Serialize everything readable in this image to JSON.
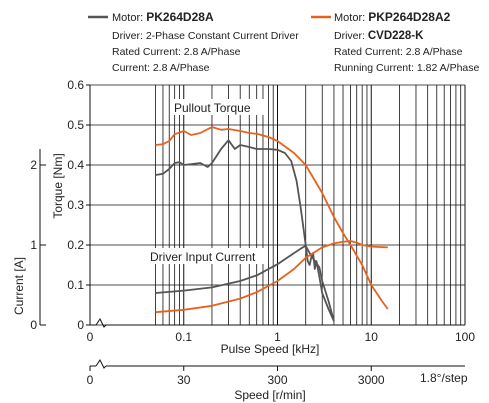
{
  "colors": {
    "dark_series": "#555555",
    "orange_series": "#e8621e",
    "grid": "#111111",
    "text": "#222222"
  },
  "legend": {
    "left": {
      "motor_prefix": "Motor: ",
      "motor_name": "PK264D28A",
      "lines": [
        "Driver: 2-Phase Constant Current Driver",
        "Rated Current: 2.8 A/Phase",
        "Current: 2.8 A/Phase"
      ]
    },
    "right": {
      "motor_prefix": "Motor: ",
      "motor_name": "PKP264D28A2",
      "driver_prefix": "Driver: ",
      "driver_name": "CVD228-K",
      "lines": [
        "Rated Current: 2.8 A/Phase",
        "Running Current: 1.82 A/Phase"
      ]
    }
  },
  "annotations": {
    "pullout": "Pullout Torque",
    "driver_current": "Driver Input Current"
  },
  "chart_data": {
    "type": "line",
    "x_scale": "log",
    "xlim": [
      0.01,
      100
    ],
    "xlabel": "Pulse Speed [kHz]",
    "x_ticks": [
      "0",
      "0.1",
      "1",
      "10",
      "100"
    ],
    "ylim_torque": [
      0,
      0.6
    ],
    "ylabel_torque": "Torque [Nm]",
    "y_ticks_torque": [
      "0",
      "0.1",
      "0.2",
      "0.3",
      "0.4",
      "0.5",
      "0.6"
    ],
    "ylim_current": [
      0,
      3
    ],
    "ylabel_current": "Current [A]",
    "y_ticks_current": [
      "0",
      "1",
      "2"
    ],
    "secondary_x": {
      "label": "Speed [r/min]",
      "ticks": [
        "0",
        "30",
        "300",
        "3000"
      ],
      "tick_positions_khz": [
        0.01,
        0.1,
        1,
        10
      ],
      "step_label": "1.8°/step"
    },
    "grid": true,
    "series": [
      {
        "color": "dark",
        "axis": "torque",
        "x": [
          0.05,
          0.06,
          0.07,
          0.08,
          0.09,
          0.1,
          0.12,
          0.15,
          0.18,
          0.2,
          0.25,
          0.3,
          0.35,
          0.4,
          0.5,
          0.6,
          0.8,
          1.0,
          1.2,
          1.4,
          1.6,
          1.75,
          1.85,
          2.0,
          2.1,
          2.2,
          2.3,
          2.4,
          2.5,
          2.6,
          2.8,
          3.0,
          3.5,
          4.0
        ],
        "y": [
          0.375,
          0.378,
          0.39,
          0.405,
          0.407,
          0.4,
          0.402,
          0.405,
          0.395,
          0.405,
          0.44,
          0.462,
          0.44,
          0.45,
          0.445,
          0.44,
          0.44,
          0.438,
          0.43,
          0.41,
          0.36,
          0.3,
          0.26,
          0.2,
          0.16,
          0.15,
          0.17,
          0.18,
          0.14,
          0.16,
          0.12,
          0.08,
          0.04,
          0.01
        ]
      },
      {
        "color": "orange",
        "axis": "torque",
        "x": [
          0.05,
          0.06,
          0.07,
          0.08,
          0.1,
          0.12,
          0.15,
          0.2,
          0.25,
          0.3,
          0.4,
          0.5,
          0.6,
          0.8,
          1.0,
          1.5,
          2.0,
          3.0,
          4.0,
          5.0,
          6.0,
          8.0,
          10.0,
          13.0,
          15.0
        ],
        "y": [
          0.45,
          0.452,
          0.46,
          0.477,
          0.485,
          0.475,
          0.48,
          0.495,
          0.488,
          0.49,
          0.485,
          0.48,
          0.478,
          0.47,
          0.46,
          0.43,
          0.4,
          0.33,
          0.27,
          0.23,
          0.2,
          0.15,
          0.1,
          0.06,
          0.04
        ]
      },
      {
        "color": "dark",
        "axis": "current",
        "x": [
          0.05,
          0.1,
          0.2,
          0.4,
          0.6,
          1.0,
          1.3,
          1.6,
          1.8,
          2.0,
          2.2,
          2.5,
          2.8,
          3.0,
          3.5,
          4.0
        ],
        "y": [
          0.4,
          0.43,
          0.47,
          0.55,
          0.62,
          0.76,
          0.85,
          0.92,
          0.96,
          0.99,
          0.9,
          0.8,
          0.72,
          0.55,
          0.3,
          0.05
        ]
      },
      {
        "color": "orange",
        "axis": "current",
        "x": [
          0.05,
          0.1,
          0.2,
          0.4,
          0.6,
          1.0,
          1.5,
          2.0,
          3.0,
          4.0,
          5.0,
          6.0,
          7.0,
          8.0,
          10.0,
          15.0
        ],
        "y": [
          0.16,
          0.19,
          0.24,
          0.33,
          0.41,
          0.55,
          0.7,
          0.84,
          0.97,
          1.02,
          1.04,
          1.05,
          1.03,
          1.0,
          0.98,
          0.97
        ]
      }
    ]
  }
}
